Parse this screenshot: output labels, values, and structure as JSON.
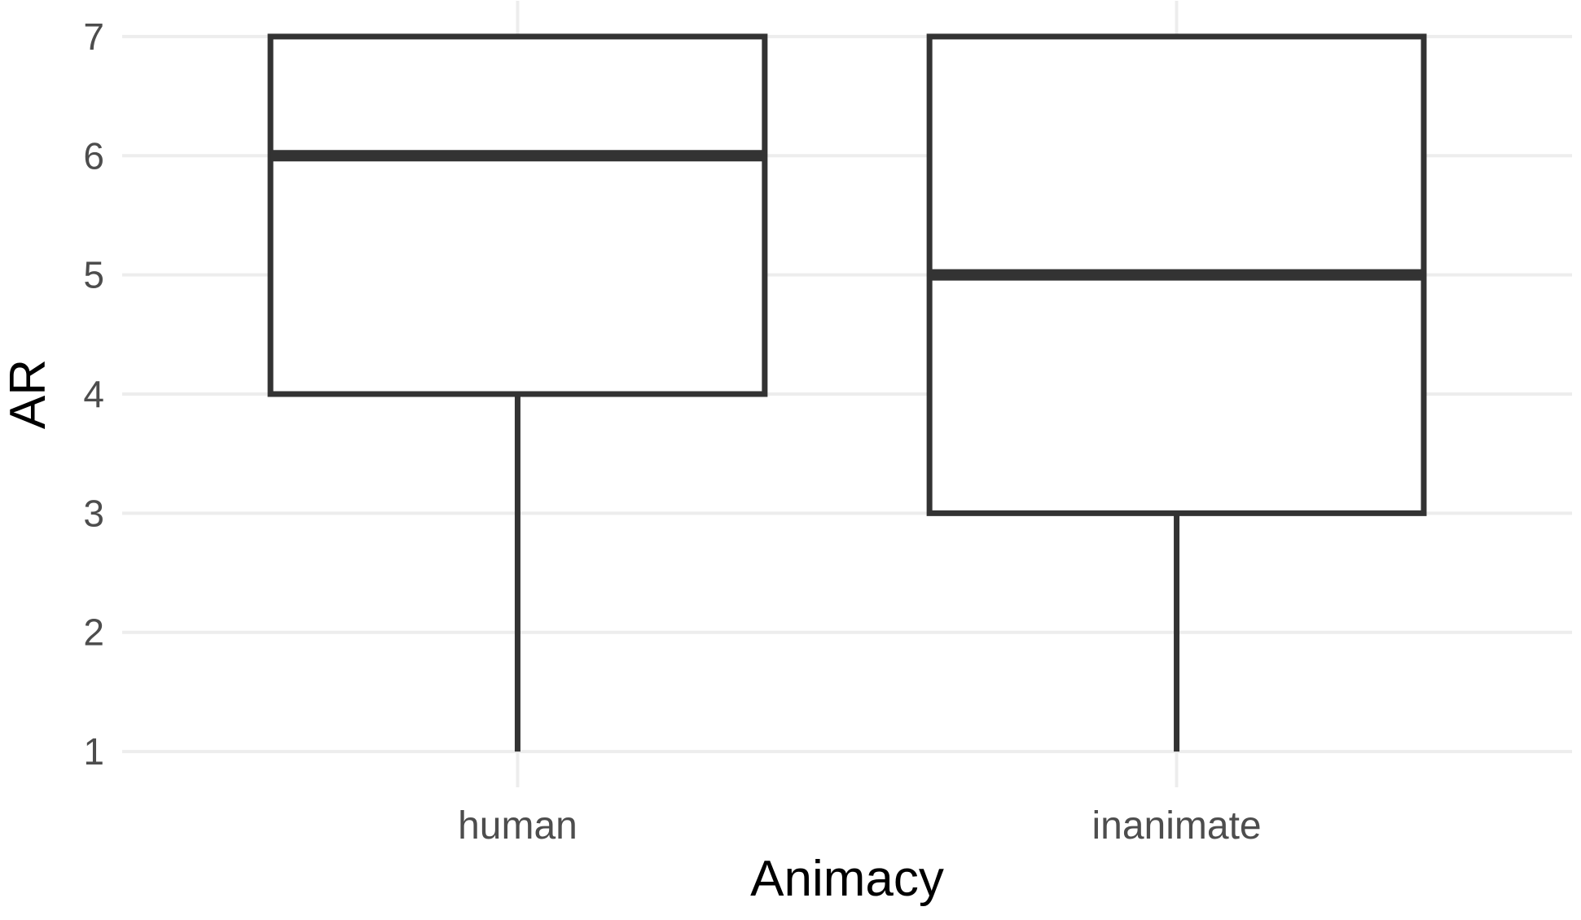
{
  "chart_data": {
    "type": "boxplot",
    "title": "",
    "xlabel": "Animacy",
    "ylabel": "AR",
    "categories": [
      "human",
      "inanimate"
    ],
    "y_ticks": [
      1,
      2,
      3,
      4,
      5,
      6,
      7
    ],
    "ylim": [
      0.7,
      7.3
    ],
    "grid": "major horizontal gridlines at each y tick and vertical gridlines at each category center; no axis lines, no tick marks (minimal theme)",
    "legend": "none",
    "series": [
      {
        "category": "human",
        "q1": 4,
        "median": 6,
        "q3": 7,
        "whisker_low": 1,
        "whisker_high": 7
      },
      {
        "category": "inanimate",
        "q1": 3,
        "median": 5,
        "q3": 7,
        "whisker_low": 1,
        "whisker_high": 7
      }
    ],
    "colors": {
      "box_stroke": "#333333",
      "median_stroke": "#333333",
      "whisker_stroke": "#333333",
      "box_fill": "#ffffff",
      "grid": "#ededed",
      "tick_label": "#4d4d4d",
      "axis_title": "#000000",
      "background": "#ffffff"
    }
  }
}
